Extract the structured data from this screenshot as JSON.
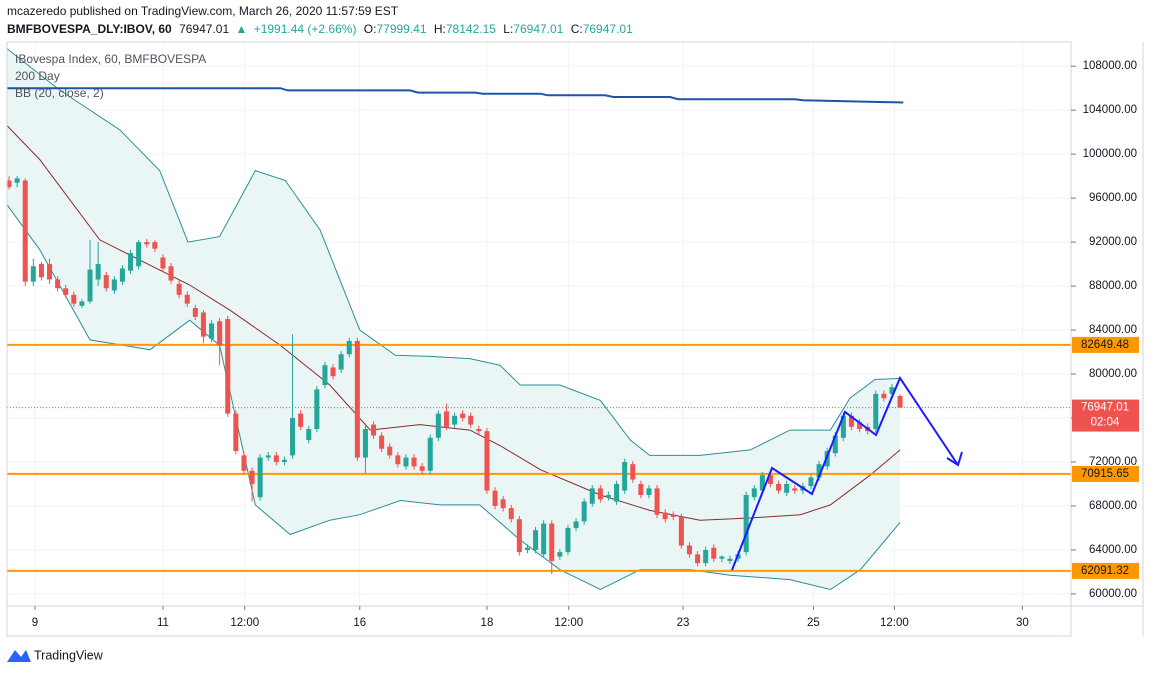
{
  "header": {
    "publisher": "mcazeredo published on TradingView.com, March 26, 2020 11:57:59 EST",
    "symbol": "BMFBOVESPA_DLY:IBOV, 60",
    "last": 76947.01,
    "arrow": "▲",
    "change": "+1991.44 (+2.66%)",
    "ohlc_labels": [
      "O:",
      "H:",
      "L:",
      "C:"
    ],
    "ohlc": [
      77999.41,
      78142.15,
      76947.01,
      76947.01
    ]
  },
  "chart_data": {
    "type": "candlestick",
    "legend_title": "IBovespa Index, 60, BMFBOVESPA",
    "up_color": "#26a69a",
    "down_color": "#ef5350",
    "open": [
      97600,
      97400,
      97600,
      88400,
      90000,
      90000,
      88600,
      87800,
      87200,
      86200,
      86600,
      88600,
      89000,
      87600,
      88400,
      89400,
      89800,
      92000,
      92000,
      90600,
      89800,
      88200,
      87200,
      86000,
      85600,
      83200,
      84800,
      85000,
      76400,
      72600,
      71200,
      68800,
      72400,
      72600,
      72000,
      72600,
      76400,
      74000,
      75000,
      79000,
      80600,
      80400,
      81800,
      83000,
      72400,
      75400,
      74400,
      73400,
      72600,
      71600,
      72400,
      71600,
      71200,
      74200,
      76600,
      75400,
      76400,
      76200,
      75000,
      74800,
      69400,
      68600,
      67800,
      66800,
      64000,
      64000,
      63600,
      66400,
      63400,
      63800,
      66000,
      66600,
      68200,
      69600,
      68800,
      68400,
      69400,
      71800,
      70000,
      69000,
      69600,
      67400,
      67200,
      67000,
      64400,
      63600,
      62800,
      64200,
      63200,
      63000,
      63200,
      63800,
      68800,
      69400,
      70800,
      70000,
      69200,
      69600,
      69400,
      69800,
      70600,
      71600,
      72800,
      74200,
      76200,
      75600,
      75200,
      75000,
      78200,
      78200,
      77999.41
    ],
    "high": [
      98000,
      98000,
      97800,
      90500,
      90200,
      90500,
      88900,
      88100,
      87500,
      86800,
      92200,
      92000,
      89300,
      88900,
      89900,
      91300,
      92200,
      92300,
      92200,
      90900,
      90100,
      88500,
      87500,
      86300,
      85800,
      84900,
      85100,
      85300,
      76700,
      72900,
      71500,
      72700,
      72900,
      72900,
      72500,
      83600,
      76700,
      75300,
      78900,
      81100,
      80900,
      82100,
      83300,
      83300,
      75300,
      75700,
      74700,
      73700,
      72900,
      72700,
      72700,
      71900,
      74500,
      76700,
      77300,
      76500,
      76700,
      76500,
      75300,
      75100,
      69700,
      68900,
      68100,
      67100,
      64500,
      66100,
      66700,
      66700,
      64100,
      66300,
      66900,
      68700,
      69900,
      69900,
      69300,
      70300,
      72300,
      72100,
      70300,
      69900,
      69900,
      67700,
      67500,
      67300,
      64700,
      63900,
      64300,
      64500,
      63500,
      63500,
      63900,
      69300,
      69900,
      71100,
      71100,
      70300,
      70300,
      69900,
      70100,
      70900,
      72100,
      73300,
      74700,
      76500,
      76500,
      75900,
      75500,
      78500,
      78500,
      79100,
      78142.15
    ],
    "low": [
      96800,
      97000,
      88000,
      88000,
      88500,
      88200,
      87500,
      86900,
      86100,
      86000,
      86400,
      88000,
      87500,
      87300,
      88100,
      89100,
      89500,
      91500,
      91100,
      89300,
      88200,
      86900,
      86100,
      84900,
      82800,
      82900,
      80800,
      76100,
      72700,
      70900,
      68400,
      68500,
      72100,
      71700,
      71700,
      72300,
      74900,
      73700,
      74700,
      78700,
      79500,
      80100,
      81500,
      72100,
      71000,
      74100,
      72900,
      72300,
      71500,
      71300,
      71300,
      70900,
      70900,
      73900,
      74900,
      75100,
      75700,
      75100,
      74500,
      69100,
      67700,
      67500,
      66500,
      63500,
      63700,
      63700,
      63300,
      61800,
      63100,
      63500,
      65700,
      66300,
      67900,
      68300,
      68500,
      68100,
      69100,
      70100,
      68700,
      68700,
      66900,
      66500,
      66700,
      64100,
      63300,
      62500,
      62500,
      62900,
      62900,
      62700,
      62900,
      63500,
      68500,
      69100,
      69700,
      69100,
      68900,
      69100,
      69100,
      69500,
      70300,
      71300,
      72500,
      73900,
      74900,
      74700,
      74500,
      74700,
      77500,
      77900,
      76947.01
    ],
    "close": [
      97000,
      97800,
      88400,
      89800,
      88800,
      88600,
      87800,
      87200,
      86400,
      86600,
      89500,
      90000,
      87800,
      88600,
      89600,
      91000,
      92000,
      91800,
      91400,
      89600,
      88500,
      87200,
      86400,
      85200,
      83400,
      84600,
      82600,
      76400,
      73000,
      71200,
      70000,
      72400,
      72600,
      72000,
      72200,
      76000,
      75200,
      75000,
      78600,
      80800,
      79800,
      81800,
      83000,
      72400,
      75000,
      74400,
      73200,
      72600,
      71800,
      72400,
      71600,
      71200,
      74200,
      76400,
      75200,
      76200,
      76000,
      75400,
      74800,
      69400,
      68000,
      67800,
      66800,
      63800,
      64200,
      65800,
      66400,
      63000,
      63800,
      66000,
      66600,
      68400,
      69600,
      68600,
      69000,
      70000,
      72000,
      70400,
      69000,
      69600,
      67200,
      66800,
      67000,
      64400,
      63600,
      62800,
      64000,
      63200,
      63400,
      63200,
      63600,
      69000,
      69600,
      70800,
      70000,
      69400,
      70000,
      69400,
      69800,
      70600,
      71800,
      73000,
      74400,
      76200,
      75200,
      75000,
      74800,
      78200,
      77800,
      78800,
      76947.01
    ],
    "series": [
      {
        "name": "200 Day",
        "color": "#1e53a8",
        "x": [
          -0.25,
          33.5,
          34.4,
          49.5,
          50.5,
          57.5,
          58.5,
          65.6,
          66.5,
          73.6,
          74.6,
          81.6,
          82.6,
          97,
          98,
          110.4
        ],
        "values": [
          106000,
          106000,
          105800,
          105800,
          105600,
          105600,
          105500,
          105500,
          105350,
          105350,
          105200,
          105200,
          105000,
          105000,
          104900,
          104700
        ]
      },
      {
        "name": "BB (20, close, 2)",
        "color": "#2a8f96",
        "band_fill": "#eaf5f5",
        "upper": {
          "x": [
            -0.25,
            6.3,
            13.7,
            18.6,
            22.1,
            26,
            30.4,
            34.1,
            38.4,
            43.3,
            47.7,
            52,
            56.9,
            60.6,
            63.1,
            68,
            73,
            76.7,
            79.1,
            85.3,
            91.5,
            96.4,
            101.4,
            103.8,
            106.9,
            110
          ],
          "values": [
            109600,
            105800,
            102200,
            98500,
            92000,
            92500,
            98500,
            97600,
            93100,
            84000,
            81700,
            81600,
            81400,
            80800,
            79000,
            79000,
            77600,
            74000,
            72600,
            72600,
            73100,
            74900,
            74900,
            77800,
            79500,
            79600
          ]
        },
        "basis": {
          "color": "#8b2a2a",
          "x": [
            -0.25,
            3.8,
            11.2,
            17.4,
            22.3,
            27.3,
            33.5,
            39.6,
            44.6,
            50.7,
            56.9,
            60.6,
            65.6,
            73,
            79.1,
            85.3,
            91.5,
            97.7,
            101.4,
            106.3,
            110
          ],
          "values": [
            102600,
            99500,
            92200,
            89900,
            88100,
            85800,
            82600,
            79000,
            74900,
            75400,
            74900,
            73500,
            71300,
            69000,
            67600,
            66700,
            66900,
            67200,
            68100,
            70800,
            73100
          ]
        },
        "lower": {
          "x": [
            -0.25,
            3.8,
            10,
            17.4,
            22.3,
            26,
            30.4,
            34.7,
            39.6,
            43.3,
            48.3,
            53.2,
            58.1,
            63.1,
            68,
            73,
            77.9,
            84.1,
            89,
            96.4,
            101.4,
            105.1,
            110
          ],
          "values": [
            95400,
            91300,
            83100,
            82200,
            84900,
            82600,
            68100,
            65400,
            66700,
            67200,
            68500,
            68100,
            68100,
            64900,
            62200,
            60400,
            62200,
            62200,
            61700,
            61300,
            60400,
            62200,
            66500
          ]
        }
      }
    ],
    "levels": {
      "color": "#ff9800",
      "values": [
        82649.48,
        70915.65,
        62091.32
      ]
    },
    "last_price": {
      "value": 76947.01,
      "countdown": "02:04",
      "color": "#ef5350"
    },
    "xlim": [
      -0.25,
      131.1
    ],
    "ylim": [
      58900,
      110200
    ],
    "xticks": [
      {
        "value": 3.2,
        "label": "9"
      },
      {
        "value": 19,
        "label": "11"
      },
      {
        "value": 29.1,
        "label": "12:00"
      },
      {
        "value": 43.3,
        "label": "16"
      },
      {
        "value": 59,
        "label": "18"
      },
      {
        "value": 69.1,
        "label": "12:00"
      },
      {
        "value": 83.2,
        "label": "23"
      },
      {
        "value": 99.3,
        "label": "25"
      },
      {
        "value": 109.3,
        "label": "12:00"
      },
      {
        "value": 125.1,
        "label": "30"
      }
    ],
    "yticks": [
      {
        "value": 60000,
        "label": "60000.00"
      },
      {
        "value": 64000,
        "label": "64000.00"
      },
      {
        "value": 68000,
        "label": "68000.00"
      },
      {
        "value": 72000,
        "label": "72000.00"
      },
      {
        "value": 76000,
        "label": "76000.00"
      },
      {
        "value": 80000,
        "label": "80000.00"
      },
      {
        "value": 84000,
        "label": "84000.00"
      },
      {
        "value": 88000,
        "label": "88000.00"
      },
      {
        "value": 92000,
        "label": "92000.00"
      },
      {
        "value": 96000,
        "label": "96000.00"
      },
      {
        "value": 100000,
        "label": "100000.00"
      },
      {
        "value": 104000,
        "label": "104000.00"
      },
      {
        "value": 108000,
        "label": "108000.00"
      }
    ],
    "grid": true
  },
  "footer": "TradingView"
}
